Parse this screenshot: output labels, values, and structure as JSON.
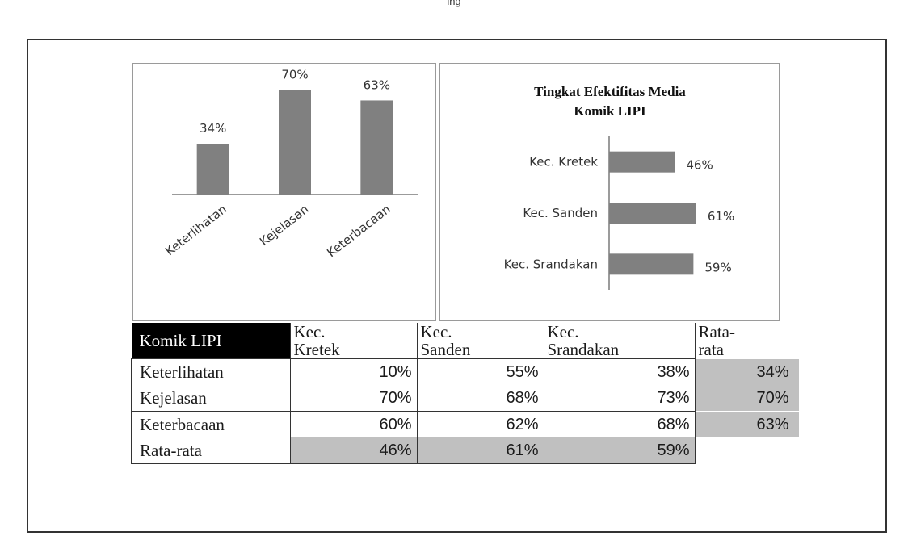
{
  "page": {
    "top_caption": "ing"
  },
  "chart_data": [
    {
      "type": "bar",
      "title": "",
      "categories": [
        "Keterlihatan",
        "Kejelasan",
        "Keterbacaan"
      ],
      "values": [
        34,
        70,
        63
      ],
      "value_labels": [
        "34%",
        "70%",
        "63%"
      ],
      "ylim": [
        0,
        80
      ],
      "color": "#808080"
    },
    {
      "type": "bar",
      "orientation": "horizontal",
      "title_lines": [
        "Tingkat Efektifitas Media",
        "Komik LIPI"
      ],
      "categories": [
        "Kec. Kretek",
        "Kec. Sanden",
        "Kec. Srandakan"
      ],
      "values": [
        46,
        61,
        59
      ],
      "value_labels": [
        "46%",
        "61%",
        "59%"
      ],
      "xlim": [
        0,
        65
      ],
      "color": "#808080"
    }
  ],
  "table": {
    "corner": "Komik LIPI",
    "columns": [
      {
        "line1": "Kec.",
        "line2": "Kretek"
      },
      {
        "line1": "Kec.",
        "line2": "Sanden"
      },
      {
        "line1": "Kec.",
        "line2": "Srandakan"
      },
      {
        "line1": "Rata-",
        "line2": "rata"
      }
    ],
    "rows": [
      {
        "label": "Keterlihatan",
        "cells": [
          "10%",
          "55%",
          "38%"
        ],
        "avg": "34%"
      },
      {
        "label": "Kejelasan",
        "cells": [
          "70%",
          "68%",
          "73%"
        ],
        "avg": "70%"
      },
      {
        "label": "Keterbacaan",
        "cells": [
          "60%",
          "62%",
          "68%"
        ],
        "avg": "63%"
      }
    ],
    "avg_row": {
      "label": "Rata-rata",
      "cells": [
        "46%",
        "61%",
        "59%"
      ]
    }
  }
}
